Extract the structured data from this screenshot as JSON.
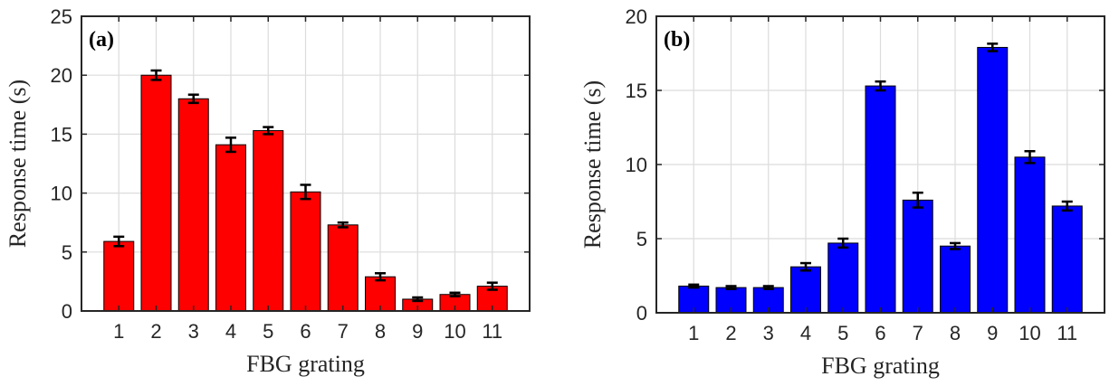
{
  "chart_data": [
    {
      "type": "bar",
      "panel_label": "(a)",
      "color": "#ff0000",
      "xlabel": "FBG grating",
      "ylabel": "Response time (s)",
      "ylim": [
        0,
        25
      ],
      "yticks": [
        "0",
        "5",
        "10",
        "15",
        "20",
        "25"
      ],
      "categories": [
        "1",
        "2",
        "3",
        "4",
        "5",
        "6",
        "7",
        "8",
        "9",
        "10",
        "11"
      ],
      "values": [
        5.9,
        20.0,
        18.0,
        14.1,
        15.3,
        10.1,
        7.3,
        2.9,
        1.0,
        1.4,
        2.1
      ],
      "errors": [
        0.4,
        0.4,
        0.35,
        0.6,
        0.3,
        0.6,
        0.2,
        0.3,
        0.15,
        0.15,
        0.3
      ],
      "grid": true
    },
    {
      "type": "bar",
      "panel_label": "(b)",
      "color": "#0000ff",
      "xlabel": "FBG grating",
      "ylabel": "Response time (s)",
      "ylim": [
        0,
        20
      ],
      "yticks": [
        "0",
        "5",
        "10",
        "15",
        "20"
      ],
      "categories": [
        "1",
        "2",
        "3",
        "4",
        "5",
        "6",
        "7",
        "8",
        "9",
        "10",
        "11"
      ],
      "values": [
        1.8,
        1.7,
        1.7,
        3.1,
        4.7,
        15.3,
        7.6,
        4.5,
        17.9,
        10.5,
        7.2
      ],
      "errors": [
        0.1,
        0.1,
        0.1,
        0.25,
        0.3,
        0.3,
        0.5,
        0.2,
        0.25,
        0.4,
        0.3
      ],
      "grid": true
    }
  ]
}
